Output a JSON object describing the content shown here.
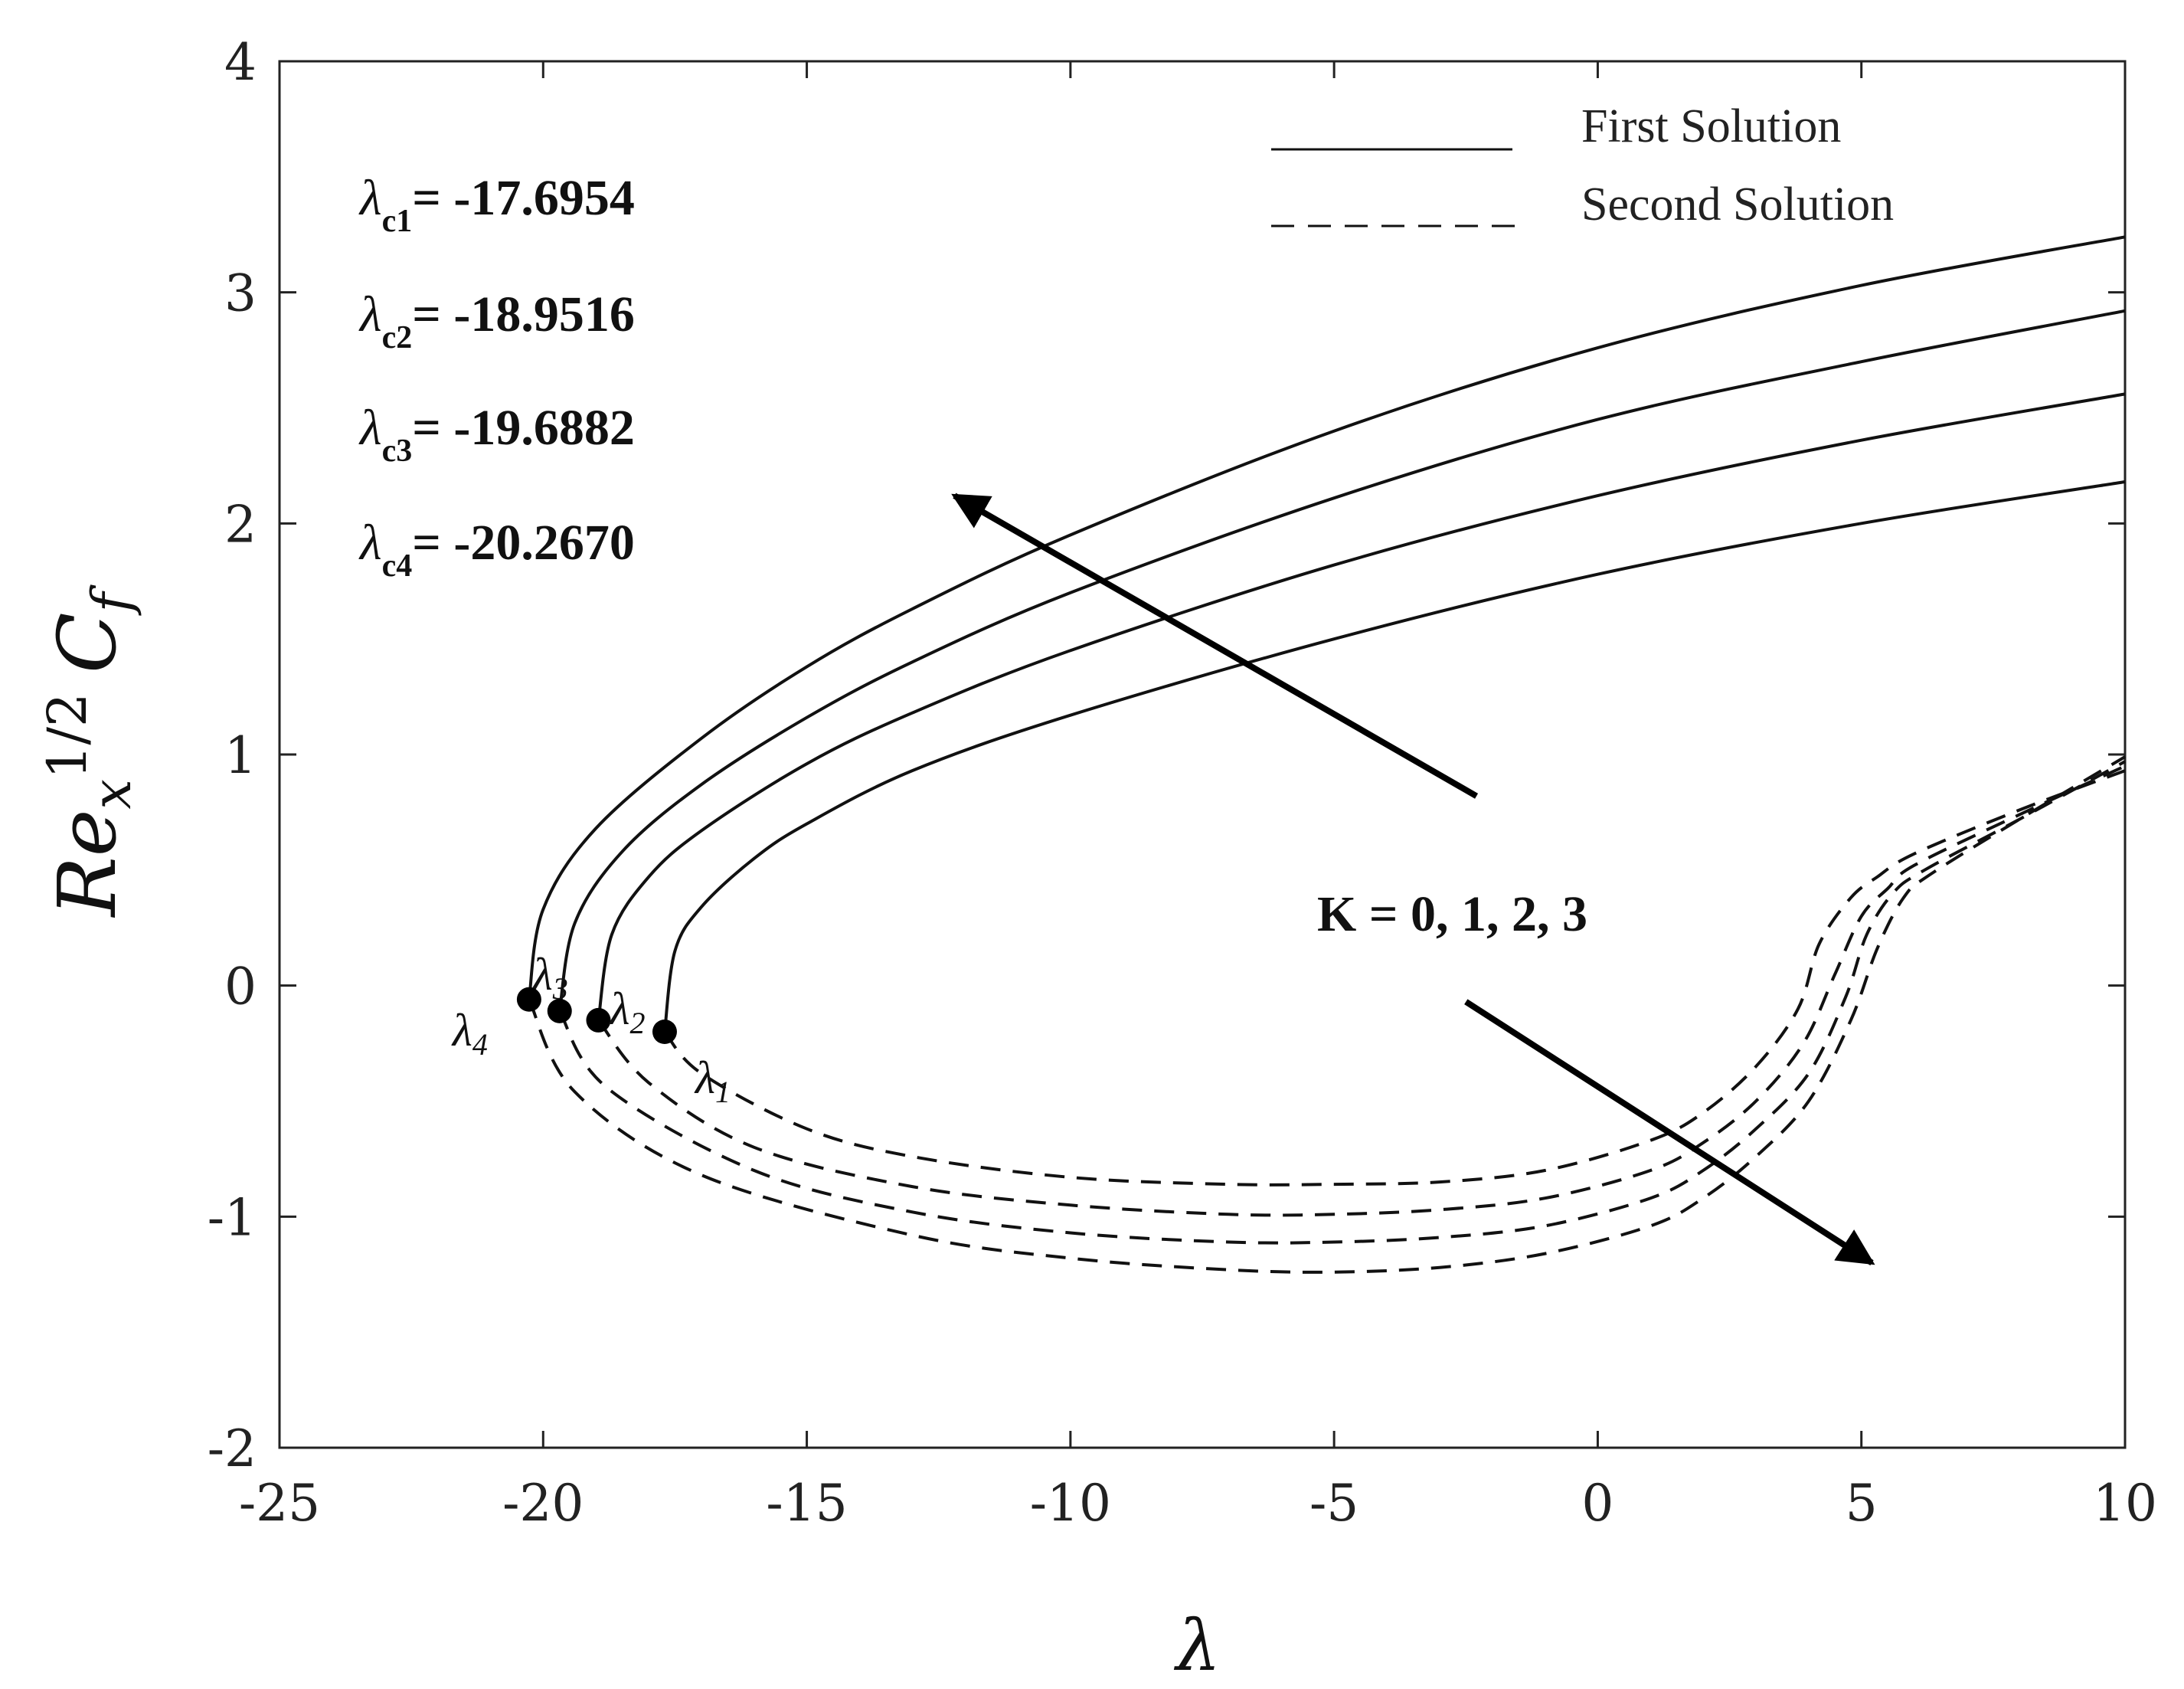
{
  "chart_data": {
    "type": "line",
    "xlabel": "λ",
    "ylabel": {
      "base": "Re",
      "sub": "x",
      "sup": "1/2",
      "coef": "C",
      "coef_sub": "f"
    },
    "xlim": [
      -25,
      10
    ],
    "ylim": [
      -2,
      4
    ],
    "xticks": [
      -25,
      -20,
      -15,
      -10,
      -5,
      0,
      5,
      10
    ],
    "yticks": [
      -2,
      -1,
      0,
      1,
      2,
      3,
      4
    ],
    "xtick_labels": [
      "-25",
      "-20",
      "-15",
      "-10",
      "-5",
      "0",
      "5",
      "10"
    ],
    "ytick_labels": [
      "-2",
      "-1",
      "0",
      "1",
      "2",
      "3",
      "4"
    ],
    "grid": false,
    "legend": {
      "position": "top-right",
      "entries": [
        {
          "label": "First Solution",
          "style": "solid"
        },
        {
          "label": "Second Solution",
          "style": "dashed"
        }
      ]
    },
    "critical_values": [
      {
        "label_main": "λ",
        "label_sub": "c1",
        "text": "= -17.6954"
      },
      {
        "label_main": "λ",
        "label_sub": "c2",
        "text": "= -18.9516"
      },
      {
        "label_main": "λ",
        "label_sub": "c3",
        "text": "= -19.6882"
      },
      {
        "label_main": "λ",
        "label_sub": "c4",
        "text": "= -20.2670"
      }
    ],
    "annotation": "K = 0, 1, 2, 3",
    "points": [
      {
        "label": "λ",
        "label_sub": "1",
        "x": -17.6954,
        "y": -0.2
      },
      {
        "label": "λ",
        "label_sub": "2",
        "x": -18.9516,
        "y": -0.15
      },
      {
        "label": "λ",
        "label_sub": "3",
        "x": -19.6882,
        "y": -0.11
      },
      {
        "label": "λ",
        "label_sub": "4",
        "x": -20.267,
        "y": -0.06
      }
    ],
    "arrows": [
      {
        "from": [
          -2.3,
          0.82
        ],
        "to": [
          -12.2,
          2.12
        ]
      },
      {
        "from": [
          -2.5,
          -0.07
        ],
        "to": [
          5.2,
          -1.2
        ]
      }
    ],
    "series": [
      {
        "style": "solid",
        "x": [
          -17.6954,
          -17.5,
          -17,
          -16,
          -15,
          -13,
          -10,
          -5,
          0,
          5,
          10
        ],
        "y": [
          -0.2,
          0.15,
          0.34,
          0.55,
          0.7,
          0.93,
          1.17,
          1.5,
          1.78,
          2.0,
          2.18
        ]
      },
      {
        "style": "solid",
        "x": [
          -18.9516,
          -18.7,
          -18,
          -17,
          -15,
          -13,
          -10,
          -5,
          0,
          5,
          10
        ],
        "y": [
          -0.15,
          0.22,
          0.47,
          0.67,
          0.96,
          1.18,
          1.45,
          1.82,
          2.12,
          2.36,
          2.56
        ]
      },
      {
        "style": "solid",
        "x": [
          -19.6882,
          -19.4,
          -18.5,
          -17,
          -15,
          -13,
          -10,
          -5,
          0,
          5,
          10
        ],
        "y": [
          -0.11,
          0.27,
          0.58,
          0.87,
          1.16,
          1.4,
          1.7,
          2.11,
          2.45,
          2.7,
          2.92
        ]
      },
      {
        "style": "solid",
        "x": [
          -20.267,
          -20.0,
          -19,
          -17,
          -15,
          -13,
          -10,
          -5,
          0,
          5,
          10
        ],
        "y": [
          -0.06,
          0.33,
          0.68,
          1.07,
          1.38,
          1.63,
          1.95,
          2.4,
          2.76,
          3.03,
          3.24
        ]
      },
      {
        "style": "dashed",
        "x": [
          -17.6954,
          -17,
          -15,
          -13,
          -10,
          -7,
          -5,
          -3,
          -1,
          1,
          2,
          3,
          3.8,
          4.2,
          4.8,
          5.3,
          6,
          8,
          10
        ],
        "y": [
          -0.2,
          -0.38,
          -0.62,
          -0.74,
          -0.83,
          -0.86,
          -0.86,
          -0.85,
          -0.8,
          -0.67,
          -0.55,
          -0.35,
          -0.1,
          0.18,
          0.38,
          0.47,
          0.57,
          0.76,
          0.93
        ]
      },
      {
        "style": "dashed",
        "x": [
          -18.9516,
          -18,
          -16,
          -13,
          -10,
          -7,
          -5,
          -3,
          -1,
          1,
          2,
          3,
          3.9,
          4.5,
          5,
          5.5,
          6,
          8,
          10
        ],
        "y": [
          -0.15,
          -0.42,
          -0.7,
          -0.87,
          -0.95,
          -0.99,
          -0.99,
          -0.97,
          -0.92,
          -0.8,
          -0.68,
          -0.5,
          -0.25,
          0.05,
          0.3,
          0.42,
          0.52,
          0.74,
          0.95
        ]
      },
      {
        "style": "dashed",
        "x": [
          -19.6882,
          -18.8,
          -16,
          -13,
          -10,
          -7,
          -5,
          -3,
          -1,
          1,
          2,
          3,
          4,
          4.7,
          5.1,
          5.6,
          6.2,
          8,
          10
        ],
        "y": [
          -0.11,
          -0.44,
          -0.8,
          -0.98,
          -1.07,
          -1.11,
          -1.11,
          -1.09,
          -1.04,
          -0.92,
          -0.8,
          -0.62,
          -0.38,
          -0.05,
          0.22,
          0.4,
          0.5,
          0.72,
          0.97
        ]
      },
      {
        "style": "dashed",
        "x": [
          -20.267,
          -19.4,
          -17,
          -13,
          -10,
          -7,
          -5,
          -3,
          -1,
          1,
          2,
          3,
          4,
          4.8,
          5.3,
          5.8,
          6.3,
          8,
          10
        ],
        "y": [
          -0.06,
          -0.46,
          -0.82,
          -1.08,
          -1.18,
          -1.23,
          -1.24,
          -1.22,
          -1.16,
          -1.04,
          -0.92,
          -0.74,
          -0.5,
          -0.15,
          0.16,
          0.38,
          0.48,
          0.72,
          0.99
        ]
      }
    ]
  }
}
